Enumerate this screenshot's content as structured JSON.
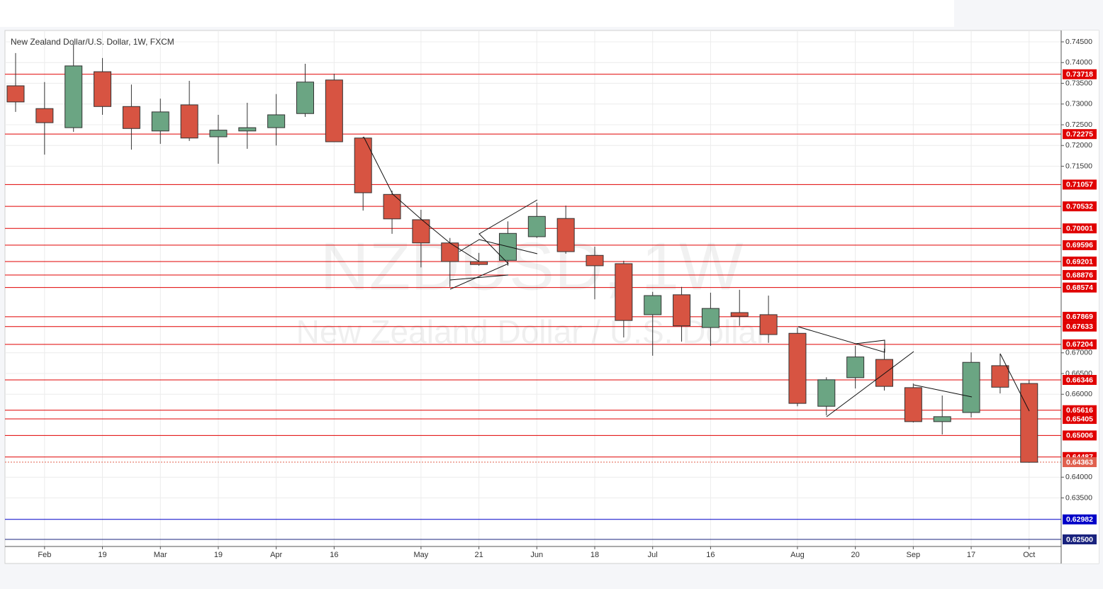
{
  "chart_data": {
    "type": "candlestick",
    "title": "New Zealand Dollar/U.S. Dollar, 1W, FXCM",
    "watermark": "NZDUSD, 1W",
    "watermark_subtitle": "New Zealand Dollar / U.S. Dollar",
    "categories": [
      null,
      "Feb",
      null,
      "19",
      null,
      "Mar",
      null,
      "19",
      null,
      "Apr",
      null,
      "16",
      null,
      null,
      "May",
      null,
      "21",
      null,
      "Jun",
      null,
      "18",
      null,
      "Jul",
      null,
      "16",
      null,
      null,
      "Aug",
      null,
      "20",
      null,
      "Sep",
      null,
      "17",
      null,
      "Oct"
    ],
    "open": [
      0.7344,
      0.7289,
      0.7243,
      0.7378,
      0.7294,
      0.7235,
      0.7298,
      0.7221,
      0.7235,
      0.7243,
      0.7277,
      0.7358,
      0.7218,
      0.7082,
      0.7021,
      0.6965,
      0.692,
      0.6923,
      0.698,
      0.7024,
      0.6935,
      0.6915,
      0.6792,
      0.684,
      0.6761,
      0.6797,
      0.6792,
      0.6747,
      0.6571,
      0.664,
      0.6684,
      0.6616,
      0.6534,
      0.6556,
      0.6669,
      0.6626
    ],
    "high": [
      0.7423,
      0.7353,
      0.7445,
      0.7411,
      0.7347,
      0.7313,
      0.7356,
      0.7274,
      0.7303,
      0.7324,
      0.7397,
      0.7373,
      0.7221,
      0.7091,
      0.7045,
      0.6977,
      0.6941,
      0.7017,
      0.7062,
      0.7055,
      0.6956,
      0.6922,
      0.6847,
      0.6859,
      0.6845,
      0.6852,
      0.6838,
      0.6761,
      0.6641,
      0.6717,
      0.671,
      0.6626,
      0.6597,
      0.6701,
      0.6698,
      0.6634
    ],
    "low": [
      0.7281,
      0.7178,
      0.7233,
      0.7274,
      0.719,
      0.7204,
      0.7211,
      0.7156,
      0.7192,
      0.72,
      0.7269,
      0.7209,
      0.7043,
      0.6987,
      0.6906,
      0.6859,
      0.691,
      0.691,
      0.6977,
      0.6939,
      0.6829,
      0.6737,
      0.6693,
      0.6727,
      0.6717,
      0.6765,
      0.6724,
      0.6571,
      0.6549,
      0.6614,
      0.6609,
      0.6532,
      0.6503,
      0.6544,
      0.6602,
      0.6435
    ],
    "close": [
      0.7305,
      0.7255,
      0.7392,
      0.7294,
      0.7241,
      0.7281,
      0.7218,
      0.7237,
      0.7243,
      0.7274,
      0.7353,
      0.7209,
      0.7086,
      0.7023,
      0.6965,
      0.692,
      0.6913,
      0.6988,
      0.7029,
      0.6944,
      0.691,
      0.6778,
      0.6838,
      0.6765,
      0.6807,
      0.6788,
      0.6744,
      0.6578,
      0.6635,
      0.669,
      0.6619,
      0.6534,
      0.6546,
      0.6677,
      0.6617,
      0.6436
    ],
    "up_color": "#6ba583",
    "down_color": "#d75442",
    "ylim": [
      0.62329,
      0.74774
    ],
    "yticks": [
      {
        "value": 0.745,
        "label": "0.74500"
      },
      {
        "value": 0.74,
        "label": "0.74000"
      },
      {
        "value": 0.735,
        "label": "0.73500"
      },
      {
        "value": 0.73,
        "label": "0.73000"
      },
      {
        "value": 0.725,
        "label": "0.72500"
      },
      {
        "value": 0.72,
        "label": "0.72000"
      },
      {
        "value": 0.715,
        "label": "0.71500"
      },
      {
        "value": 0.67,
        "label": "0.67000"
      },
      {
        "value": 0.665,
        "label": "0.66500"
      },
      {
        "value": 0.66,
        "label": "0.66000"
      },
      {
        "value": 0.64,
        "label": "0.64000"
      },
      {
        "value": 0.635,
        "label": "0.63500"
      }
    ],
    "grid": true,
    "levels": [
      {
        "value": 0.73718,
        "color": "#e00000"
      },
      {
        "value": 0.72275,
        "color": "#e00000"
      },
      {
        "value": 0.71057,
        "color": "#e00000"
      },
      {
        "value": 0.70532,
        "color": "#e00000"
      },
      {
        "value": 0.70001,
        "color": "#e00000"
      },
      {
        "value": 0.69596,
        "color": "#e00000"
      },
      {
        "value": 0.69201,
        "color": "#e00000"
      },
      {
        "value": 0.68876,
        "color": "#e00000"
      },
      {
        "value": 0.68574,
        "color": "#e00000"
      },
      {
        "value": 0.67869,
        "color": "#e00000"
      },
      {
        "value": 0.67633,
        "color": "#e00000"
      },
      {
        "value": 0.67204,
        "color": "#e00000"
      },
      {
        "value": 0.66346,
        "color": "#e00000"
      },
      {
        "value": 0.65616,
        "color": "#e00000"
      },
      {
        "value": 0.65405,
        "color": "#e00000"
      },
      {
        "value": 0.65006,
        "color": "#e00000"
      },
      {
        "value": 0.64487,
        "color": "#e00000"
      },
      {
        "value": 0.64363,
        "color": "#e0604e",
        "dotted": true
      },
      {
        "value": 0.62982,
        "color": "#0000c8"
      },
      {
        "value": 0.625,
        "label": "0.62500",
        "color": "#1a237e"
      }
    ]
  }
}
